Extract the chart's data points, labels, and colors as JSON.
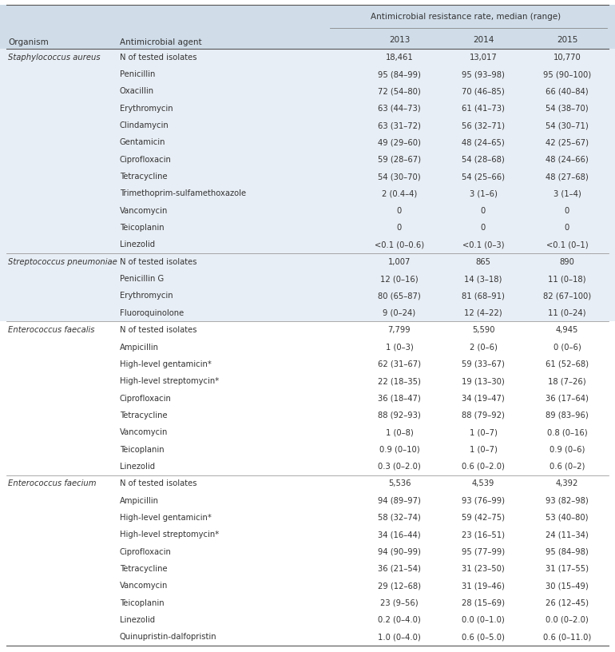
{
  "header_top": "Antimicrobial resistance rate, median (range)",
  "col_labels": [
    "Organism",
    "Antimicrobial agent"
  ],
  "year_labels": [
    "2013",
    "2014",
    "2015"
  ],
  "header_bg": "#d0dde9",
  "section_bg_blue": "#e8eef5",
  "section_bg_white": "#ffffff",
  "rows": [
    {
      "organism": "Staphylococcus aureus",
      "agent": "N of tested isolates",
      "v2013": "18,461",
      "v2014": "13,017",
      "v2015": "10,770",
      "section": 1
    },
    {
      "organism": "",
      "agent": "Penicillin",
      "v2013": "95 (84–99)",
      "v2014": "95 (93–98)",
      "v2015": "95 (90–100)",
      "section": 1
    },
    {
      "organism": "",
      "agent": "Oxacillin",
      "v2013": "72 (54–80)",
      "v2014": "70 (46–85)",
      "v2015": "66 (40–84)",
      "section": 1
    },
    {
      "organism": "",
      "agent": "Erythromycin",
      "v2013": "63 (44–73)",
      "v2014": "61 (41–73)",
      "v2015": "54 (38–70)",
      "section": 1
    },
    {
      "organism": "",
      "agent": "Clindamycin",
      "v2013": "63 (31–72)",
      "v2014": "56 (32–71)",
      "v2015": "54 (30–71)",
      "section": 1
    },
    {
      "organism": "",
      "agent": "Gentamicin",
      "v2013": "49 (29–60)",
      "v2014": "48 (24–65)",
      "v2015": "42 (25–67)",
      "section": 1
    },
    {
      "organism": "",
      "agent": "Ciprofloxacin",
      "v2013": "59 (28–67)",
      "v2014": "54 (28–68)",
      "v2015": "48 (24–66)",
      "section": 1
    },
    {
      "organism": "",
      "agent": "Tetracycline",
      "v2013": "54 (30–70)",
      "v2014": "54 (25–66)",
      "v2015": "48 (27–68)",
      "section": 1
    },
    {
      "organism": "",
      "agent": "Trimethoprim-sulfamethoxazole",
      "v2013": "2 (0.4–4)",
      "v2014": "3 (1–6)",
      "v2015": "3 (1–4)",
      "section": 1
    },
    {
      "organism": "",
      "agent": "Vancomycin",
      "v2013": "0",
      "v2014": "0",
      "v2015": "0",
      "section": 1
    },
    {
      "organism": "",
      "agent": "Teicoplanin",
      "v2013": "0",
      "v2014": "0",
      "v2015": "0",
      "section": 1
    },
    {
      "organism": "",
      "agent": "Linezolid",
      "v2013": "<0.1 (0–0.6)",
      "v2014": "<0.1 (0–3)",
      "v2015": "<0.1 (0–1)",
      "section": 1
    },
    {
      "organism": "Streptococcus pneumoniae",
      "agent": "N of tested isolates",
      "v2013": "1,007",
      "v2014": "865",
      "v2015": "890",
      "section": 2
    },
    {
      "organism": "",
      "agent": "Penicillin G",
      "v2013": "12 (0–16)",
      "v2014": "14 (3–18)",
      "v2015": "11 (0–18)",
      "section": 2
    },
    {
      "organism": "",
      "agent": "Erythromycin",
      "v2013": "80 (65–87)",
      "v2014": "81 (68–91)",
      "v2015": "82 (67–100)",
      "section": 2
    },
    {
      "organism": "",
      "agent": "Fluoroquinolone",
      "v2013": "9 (0–24)",
      "v2014": "12 (4–22)",
      "v2015": "11 (0–24)",
      "section": 2
    },
    {
      "organism": "Enterococcus faecalis",
      "agent": "N of tested isolates",
      "v2013": "7,799",
      "v2014": "5,590",
      "v2015": "4,945",
      "section": 3
    },
    {
      "organism": "",
      "agent": "Ampicillin",
      "v2013": "1 (0–3)",
      "v2014": "2 (0–6)",
      "v2015": "0 (0–6)",
      "section": 3
    },
    {
      "organism": "",
      "agent": "High-level gentamicin*",
      "v2013": "62 (31–67)",
      "v2014": "59 (33–67)",
      "v2015": "61 (52–68)",
      "section": 3
    },
    {
      "organism": "",
      "agent": "High-level streptomycin*",
      "v2013": "22 (18–35)",
      "v2014": "19 (13–30)",
      "v2015": "18 (7–26)",
      "section": 3
    },
    {
      "organism": "",
      "agent": "Ciprofloxacin",
      "v2013": "36 (18–47)",
      "v2014": "34 (19–47)",
      "v2015": "36 (17–64)",
      "section": 3
    },
    {
      "organism": "",
      "agent": "Tetracycline",
      "v2013": "88 (92–93)",
      "v2014": "88 (79–92)",
      "v2015": "89 (83–96)",
      "section": 3
    },
    {
      "organism": "",
      "agent": "Vancomycin",
      "v2013": "1 (0–8)",
      "v2014": "1 (0–7)",
      "v2015": "0.8 (0–16)",
      "section": 3
    },
    {
      "organism": "",
      "agent": "Teicoplanin",
      "v2013": "0.9 (0–10)",
      "v2014": "1 (0–7)",
      "v2015": "0.9 (0–6)",
      "section": 3
    },
    {
      "organism": "",
      "agent": "Linezolid",
      "v2013": "0.3 (0–2.0)",
      "v2014": "0.6 (0–2.0)",
      "v2015": "0.6 (0–2)",
      "section": 3
    },
    {
      "organism": "Enterococcus faecium",
      "agent": "N of tested isolates",
      "v2013": "5,536",
      "v2014": "4,539",
      "v2015": "4,392",
      "section": 4
    },
    {
      "organism": "",
      "agent": "Ampicillin",
      "v2013": "94 (89–97)",
      "v2014": "93 (76–99)",
      "v2015": "93 (82–98)",
      "section": 4
    },
    {
      "organism": "",
      "agent": "High-level gentamicin*",
      "v2013": "58 (32–74)",
      "v2014": "59 (42–75)",
      "v2015": "53 (40–80)",
      "section": 4
    },
    {
      "organism": "",
      "agent": "High-level streptomycin*",
      "v2013": "34 (16–44)",
      "v2014": "23 (16–51)",
      "v2015": "24 (11–34)",
      "section": 4
    },
    {
      "organism": "",
      "agent": "Ciprofloxacin",
      "v2013": "94 (90–99)",
      "v2014": "95 (77–99)",
      "v2015": "95 (84–98)",
      "section": 4
    },
    {
      "organism": "",
      "agent": "Tetracycline",
      "v2013": "36 (21–54)",
      "v2014": "31 (23–50)",
      "v2015": "31 (17–55)",
      "section": 4
    },
    {
      "organism": "",
      "agent": "Vancomycin",
      "v2013": "29 (12–68)",
      "v2014": "31 (19–46)",
      "v2015": "30 (15–49)",
      "section": 4
    },
    {
      "organism": "",
      "agent": "Teicoplanin",
      "v2013": "23 (9–56)",
      "v2014": "28 (15–69)",
      "v2015": "26 (12–45)",
      "section": 4
    },
    {
      "organism": "",
      "agent": "Linezolid",
      "v2013": "0.2 (0–4.0)",
      "v2014": "0.0 (0–1.0)",
      "v2015": "0.0 (0–2.0)",
      "section": 4
    },
    {
      "organism": "",
      "agent": "Quinupristin-dalfopristin",
      "v2013": "1.0 (0–4.0)",
      "v2014": "0.6 (0–5.0)",
      "v2015": "0.6 (0–11.0)",
      "section": 4
    }
  ],
  "font_size": 7.2,
  "header_font_size": 7.5,
  "text_color": "#333333",
  "line_color": "#888888",
  "line_color_strong": "#555555"
}
